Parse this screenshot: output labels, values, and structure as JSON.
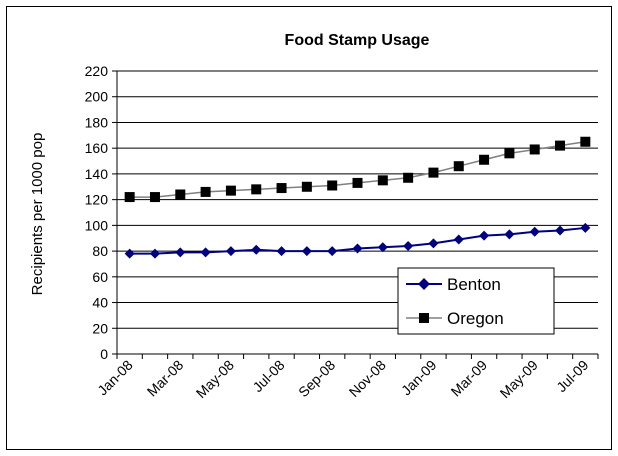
{
  "chart_data": {
    "type": "line",
    "title": "Food Stamp Usage",
    "xlabel": "",
    "ylabel": "Recipients per 1000 pop",
    "ylim": [
      0,
      220
    ],
    "yticks": [
      0,
      20,
      40,
      60,
      80,
      100,
      120,
      140,
      160,
      180,
      200,
      220
    ],
    "x": [
      "Jan-08",
      "Feb-08",
      "Mar-08",
      "Apr-08",
      "May-08",
      "Jun-08",
      "Jul-08",
      "Aug-08",
      "Sep-08",
      "Oct-08",
      "Nov-08",
      "Dec-08",
      "Jan-09",
      "Feb-09",
      "Mar-09",
      "Apr-09",
      "May-09",
      "Jun-09",
      "Jul-09"
    ],
    "xtick_labels": [
      "Jan-08",
      "Mar-08",
      "May-08",
      "Jul-08",
      "Sep-08",
      "Nov-08",
      "Jan-09",
      "Mar-09",
      "May-09",
      "Jul-09"
    ],
    "grid": "horizontal",
    "legend_position": "bottom-right",
    "series": [
      {
        "name": "Benton",
        "color": "#000080",
        "marker": "diamond",
        "values": [
          78,
          78,
          79,
          79,
          80,
          81,
          80,
          80,
          80,
          82,
          83,
          84,
          86,
          89,
          92,
          93,
          95,
          96,
          98
        ]
      },
      {
        "name": "Oregon",
        "color": "#000000",
        "line_color": "#808080",
        "marker": "square",
        "values": [
          122,
          122,
          124,
          126,
          127,
          128,
          129,
          130,
          131,
          133,
          135,
          137,
          141,
          146,
          151,
          156,
          159,
          162,
          165
        ]
      }
    ]
  }
}
